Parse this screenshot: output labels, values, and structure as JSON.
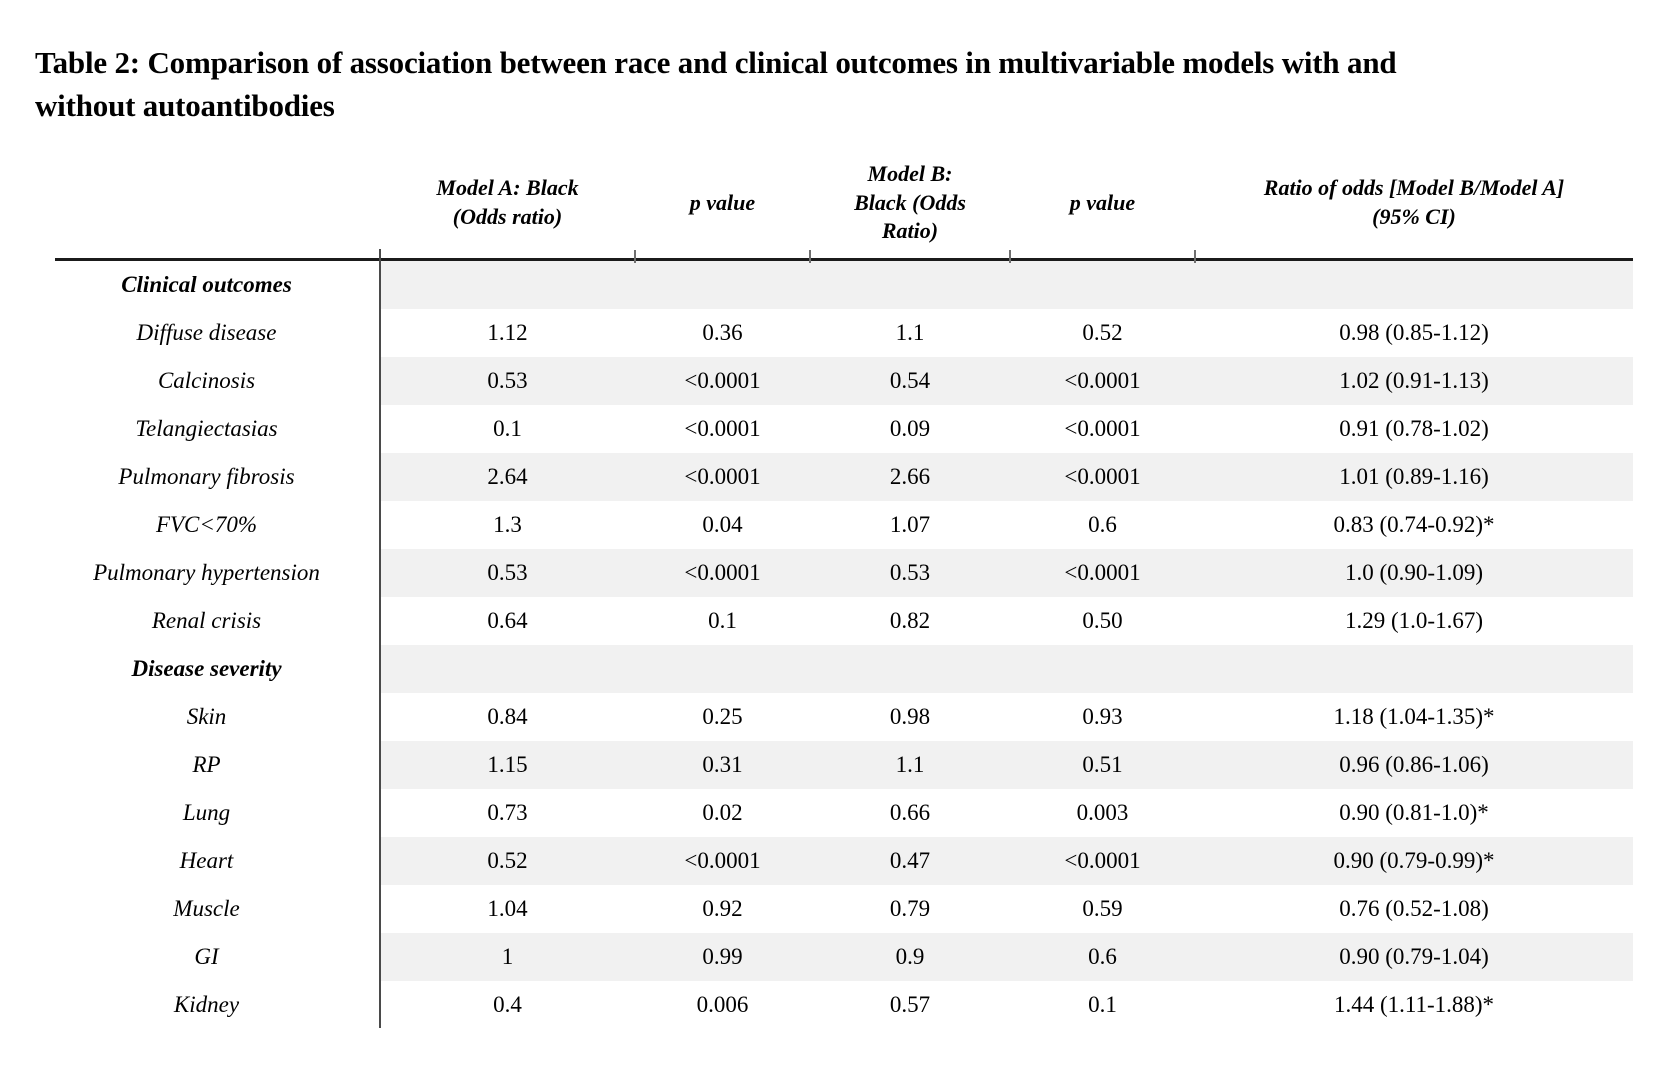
{
  "title": "Table 2: Comparison of association between race and clinical outcomes in multivariable models with and\nwithout autoantibodies",
  "table": {
    "headers": [
      "Model A: Black\n(Odds ratio)",
      "p value",
      "Model B:\nBlack (Odds\nRatio)",
      "p value",
      "Ratio of odds [Model B/Model A]\n(95% CI)"
    ],
    "rows": [
      {
        "label": "Clinical outcomes",
        "section": true,
        "shaded": true,
        "values": [
          "",
          "",
          "",
          "",
          ""
        ]
      },
      {
        "label": "Diffuse disease",
        "section": false,
        "shaded": false,
        "values": [
          "1.12",
          "0.36",
          "1.1",
          "0.52",
          "0.98 (0.85-1.12)"
        ]
      },
      {
        "label": "Calcinosis",
        "section": false,
        "shaded": true,
        "values": [
          "0.53",
          "<0.0001",
          "0.54",
          "<0.0001",
          "1.02 (0.91-1.13)"
        ]
      },
      {
        "label": "Telangiectasias",
        "section": false,
        "shaded": false,
        "values": [
          "0.1",
          "<0.0001",
          "0.09",
          "<0.0001",
          "0.91 (0.78-1.02)"
        ]
      },
      {
        "label": "Pulmonary fibrosis",
        "section": false,
        "shaded": true,
        "values": [
          "2.64",
          "<0.0001",
          "2.66",
          "<0.0001",
          "1.01 (0.89-1.16)"
        ]
      },
      {
        "label": "FVC<70%",
        "section": false,
        "shaded": false,
        "values": [
          "1.3",
          "0.04",
          "1.07",
          "0.6",
          "0.83 (0.74-0.92)*"
        ]
      },
      {
        "label": "Pulmonary hypertension",
        "section": false,
        "shaded": true,
        "values": [
          "0.53",
          "<0.0001",
          "0.53",
          "<0.0001",
          "1.0 (0.90-1.09)"
        ]
      },
      {
        "label": "Renal crisis",
        "section": false,
        "shaded": false,
        "values": [
          "0.64",
          "0.1",
          "0.82",
          "0.50",
          "1.29 (1.0-1.67)"
        ]
      },
      {
        "label": "Disease severity",
        "section": true,
        "shaded": true,
        "values": [
          "",
          "",
          "",
          "",
          ""
        ]
      },
      {
        "label": "Skin",
        "section": false,
        "shaded": false,
        "values": [
          "0.84",
          "0.25",
          "0.98",
          "0.93",
          "1.18 (1.04-1.35)*"
        ]
      },
      {
        "label": "RP",
        "section": false,
        "shaded": true,
        "values": [
          "1.15",
          "0.31",
          "1.1",
          "0.51",
          "0.96 (0.86-1.06)"
        ]
      },
      {
        "label": "Lung",
        "section": false,
        "shaded": false,
        "values": [
          "0.73",
          "0.02",
          "0.66",
          "0.003",
          "0.90 (0.81-1.0)*"
        ]
      },
      {
        "label": "Heart",
        "section": false,
        "shaded": true,
        "values": [
          "0.52",
          "<0.0001",
          "0.47",
          "<0.0001",
          "0.90 (0.79-0.99)*"
        ]
      },
      {
        "label": "Muscle",
        "section": false,
        "shaded": false,
        "values": [
          "1.04",
          "0.92",
          "0.79",
          "0.59",
          "0.76 (0.52-1.08)"
        ]
      },
      {
        "label": "GI",
        "section": false,
        "shaded": true,
        "values": [
          "1",
          "0.99",
          "0.9",
          "0.6",
          "0.90 (0.79-1.04)"
        ]
      },
      {
        "label": "Kidney",
        "section": false,
        "shaded": false,
        "values": [
          "0.4",
          "0.006",
          "0.57",
          "0.1",
          "1.44 (1.11-1.88)*"
        ]
      }
    ]
  },
  "colors": {
    "band": "#f1f1f1",
    "rule": "#1b1b1b",
    "divider": "#4a4a4a",
    "text": "#000000",
    "background": "#ffffff"
  }
}
